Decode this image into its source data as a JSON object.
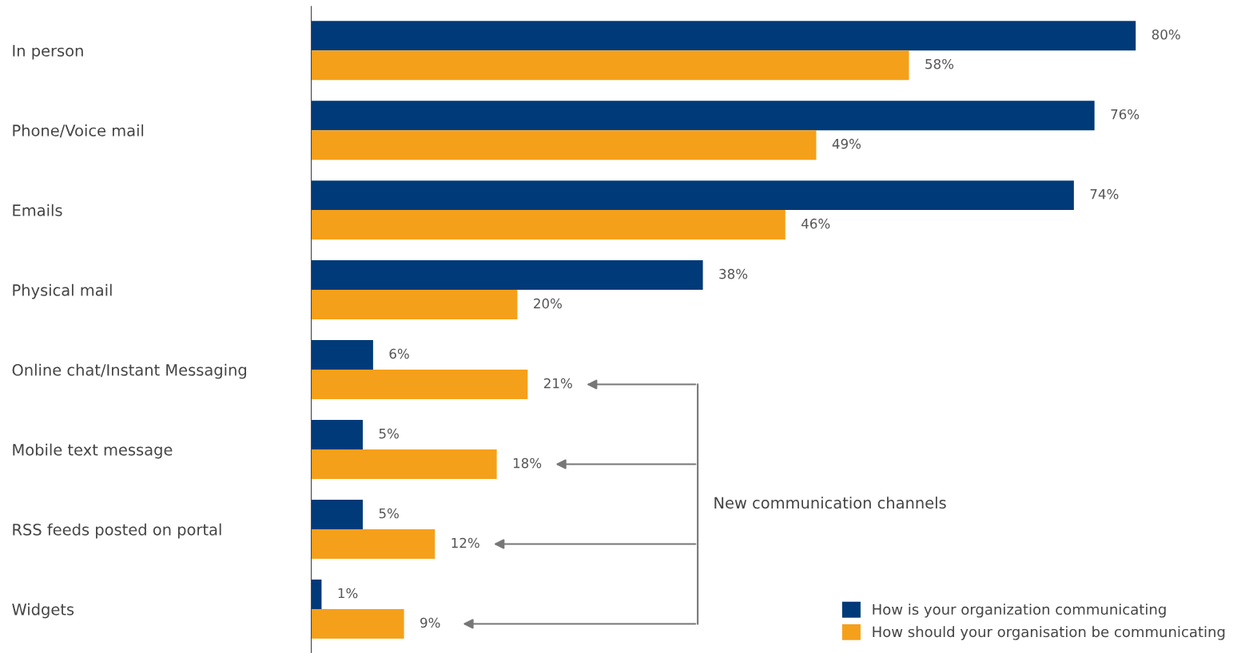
{
  "chart_data": {
    "type": "bar",
    "orientation": "horizontal",
    "categories": [
      "In person",
      "Phone/Voice mail",
      "Emails",
      "Physical mail",
      "Online chat/Instant Messaging",
      "Mobile text message",
      "RSS feeds posted on portal",
      "Widgets"
    ],
    "series": [
      {
        "name": "How is your organization communicating",
        "color": "#003a78",
        "values": [
          80,
          76,
          74,
          38,
          6,
          5,
          5,
          1
        ],
        "value_labels": [
          "80%",
          "76%",
          "74%",
          "38%",
          "6%",
          "5%",
          "5%",
          "1%"
        ]
      },
      {
        "name": "How should your organisation be communicating",
        "color": "#f5a01a",
        "values": [
          58,
          49,
          46,
          20,
          21,
          18,
          12,
          9
        ],
        "value_labels": [
          "58%",
          "49%",
          "46%",
          "20%",
          "21%",
          "18%",
          "12%",
          "9%"
        ]
      }
    ],
    "annotations": [
      "New communication channels"
    ],
    "legend": "bottom right",
    "grid": false
  }
}
